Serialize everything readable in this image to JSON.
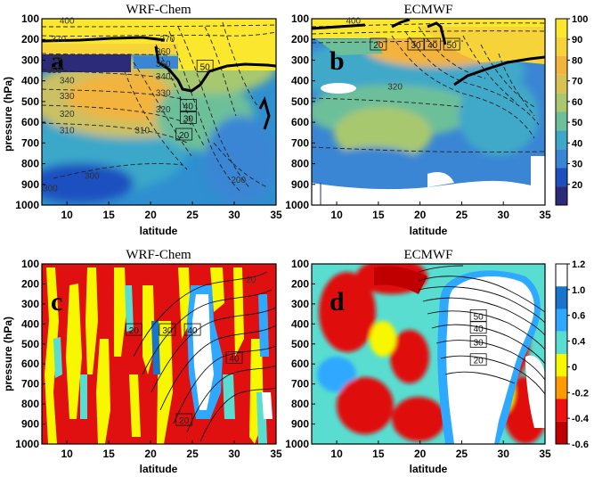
{
  "chart_data": [
    {
      "type": "heatmap",
      "panel_letter": "a",
      "title": "WRF-Chem",
      "xlabel": "latitude",
      "ylabel": "pressure (hPa)",
      "xlim": [
        7,
        35
      ],
      "ylim": [
        1000,
        100
      ],
      "xticks": [
        "10",
        "15",
        "20",
        "25",
        "30",
        "35"
      ],
      "yticks": [
        "100",
        "200",
        "300",
        "400",
        "500",
        "600",
        "700",
        "800",
        "900",
        "1000"
      ],
      "colorbar_shared_with": "b",
      "contour_labels": [
        {
          "text": "400",
          "at": [
            10,
            110
          ]
        },
        {
          "text": "370",
          "at": [
            9,
            200
          ]
        },
        {
          "text": "360",
          "at": [
            9,
            290
          ]
        },
        {
          "text": "350",
          "at": [
            8.5,
            350
          ]
        },
        {
          "text": "340",
          "at": [
            10,
            400
          ]
        },
        {
          "text": "330",
          "at": [
            10,
            475
          ]
        },
        {
          "text": "320",
          "at": [
            10,
            560
          ]
        },
        {
          "text": "310",
          "at": [
            10,
            640
          ]
        },
        {
          "text": "300",
          "at": [
            13,
            860
          ]
        },
        {
          "text": "300",
          "at": [
            8,
            920
          ]
        },
        {
          "text": "370",
          "at": [
            22,
            200
          ]
        },
        {
          "text": "360",
          "at": [
            21.5,
            260
          ]
        },
        {
          "text": "350",
          "at": [
            21.5,
            320
          ]
        },
        {
          "text": "340",
          "at": [
            21.5,
            380
          ]
        },
        {
          "text": "330",
          "at": [
            21.5,
            460
          ]
        },
        {
          "text": "320",
          "at": [
            21.5,
            540
          ]
        },
        {
          "text": "310",
          "at": [
            19,
            640
          ]
        },
        {
          "text": "200",
          "at": [
            30.5,
            880
          ]
        }
      ],
      "boxed_labels": [
        {
          "text": "50",
          "at": [
            26.5,
            330
          ]
        },
        {
          "text": "40",
          "at": [
            24.5,
            520
          ]
        },
        {
          "text": "30",
          "at": [
            24.5,
            580
          ]
        },
        {
          "text": "20",
          "at": [
            24,
            660
          ]
        }
      ]
    },
    {
      "type": "heatmap",
      "panel_letter": "b",
      "title": "ECMWF",
      "xlabel": "latitude",
      "xlim": [
        7,
        35
      ],
      "ylim": [
        1000,
        100
      ],
      "xticks": [
        "10",
        "15",
        "20",
        "25",
        "30",
        "35"
      ],
      "yticks": [
        "100",
        "200",
        "300",
        "400",
        "500",
        "600",
        "700",
        "800",
        "900",
        "1000"
      ],
      "colorbar": {
        "ticks": [
          "10",
          "20",
          "30",
          "40",
          "50",
          "60",
          "70",
          "80",
          "90",
          "100"
        ],
        "colors": [
          "#2b2b7a",
          "#1d4fbf",
          "#3a86d4",
          "#3fa8c8",
          "#6dbf9a",
          "#a8c870",
          "#d8c254",
          "#f2b43d",
          "#f7d33a",
          "#fbe72d"
        ]
      },
      "contour_labels": [
        {
          "text": "400",
          "at": [
            12,
            110
          ]
        },
        {
          "text": "320",
          "at": [
            17,
            430
          ]
        }
      ],
      "boxed_labels": [
        {
          "text": "20",
          "at": [
            15,
            225
          ]
        },
        {
          "text": "30",
          "at": [
            19.5,
            225
          ]
        },
        {
          "text": "40",
          "at": [
            21.5,
            225
          ]
        },
        {
          "text": "50",
          "at": [
            23.8,
            225
          ]
        }
      ]
    },
    {
      "type": "heatmap",
      "panel_letter": "c",
      "title": "WRF-Chem",
      "xlabel": "latitude",
      "ylabel": "pressure (hPa)",
      "xlim": [
        7,
        35
      ],
      "ylim": [
        1000,
        100
      ],
      "xticks": [
        "10",
        "15",
        "20",
        "25",
        "30",
        "35"
      ],
      "yticks": [
        "100",
        "200",
        "300",
        "400",
        "500",
        "600",
        "700",
        "800",
        "900",
        "1000"
      ],
      "colorbar_shared_with": "d",
      "boxed_labels": [
        {
          "text": "20",
          "at": [
            18,
            430
          ]
        },
        {
          "text": "30",
          "at": [
            22,
            430
          ]
        },
        {
          "text": "40",
          "at": [
            25,
            430
          ]
        },
        {
          "text": "40",
          "at": [
            30,
            570
          ]
        },
        {
          "text": "20",
          "at": [
            24,
            880
          ]
        }
      ],
      "contour_labels": [
        {
          "text": "20",
          "at": [
            32,
            180
          ]
        }
      ]
    },
    {
      "type": "heatmap",
      "panel_letter": "d",
      "title": "ECMWF",
      "xlabel": "latitude",
      "xlim": [
        7,
        35
      ],
      "ylim": [
        1000,
        100
      ],
      "xticks": [
        "10",
        "15",
        "20",
        "25",
        "30",
        "35"
      ],
      "yticks": [
        "100",
        "200",
        "300",
        "400",
        "500",
        "600",
        "700",
        "800",
        "900",
        "1000"
      ],
      "colorbar": {
        "ticks": [
          "1.2",
          "1.0",
          "0.6",
          "0.4",
          "0",
          "-0.2",
          "-0.4",
          "-0.6"
        ],
        "colors": [
          "#ffffff",
          "#1874cd",
          "#2fa9ff",
          "#58ddd0",
          "#f7f700",
          "#ff9a00",
          "#f01010",
          "#c00000"
        ]
      },
      "boxed_labels": [
        {
          "text": "50",
          "at": [
            27,
            360
          ]
        },
        {
          "text": "40",
          "at": [
            27,
            420
          ]
        },
        {
          "text": "30",
          "at": [
            27,
            490
          ]
        },
        {
          "text": "20",
          "at": [
            27,
            580
          ]
        }
      ]
    }
  ]
}
